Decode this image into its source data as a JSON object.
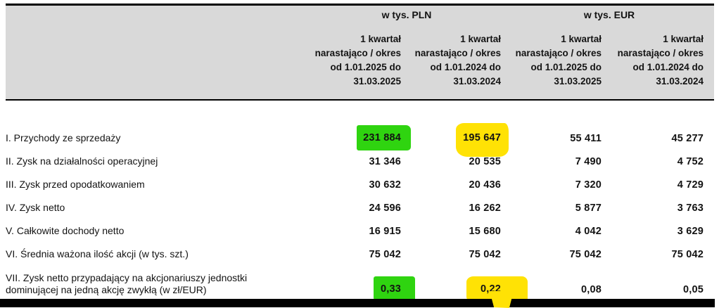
{
  "colors": {
    "green": "#2fd410",
    "yellow": "#ffe205",
    "header_bg": "#d9d9d9"
  },
  "table": {
    "unit_headers": {
      "pln": "w tys. PLN",
      "eur": "w tys. EUR"
    },
    "period_headers": {
      "pln_2025": "1 kwartał\nnarastająco / okres\nod 1.01.2025 do\n31.03.2025",
      "pln_2024": "1 kwartał\nnarastająco / okres\nod 1.01.2024 do\n31.03.2024",
      "eur_2025": "1 kwartał\nnarastająco / okres\nod 1.01.2025 do\n31.03.2025",
      "eur_2024": "1 kwartał\nnarastająco / okres\nod 1.01.2024 do\n31.03.2024"
    },
    "rows": [
      {
        "label": "I. Przychody ze sprzedaży",
        "values": [
          "231 884",
          "195 647",
          "55 411",
          "45 277"
        ],
        "highlights": [
          "green",
          "yellow",
          "",
          ""
        ]
      },
      {
        "label": "II. Zysk na działalności operacyjnej",
        "values": [
          "31 346",
          "20 535",
          "7 490",
          "4 752"
        ],
        "highlights": [
          "",
          "",
          "",
          ""
        ]
      },
      {
        "label": "III. Zysk przed opodatkowaniem",
        "values": [
          "30 632",
          "20 436",
          "7 320",
          "4 729"
        ],
        "highlights": [
          "",
          "",
          "",
          ""
        ]
      },
      {
        "label": "IV. Zysk netto",
        "values": [
          "24 596",
          "16 262",
          "5 877",
          "3 763"
        ],
        "highlights": [
          "",
          "",
          "",
          ""
        ]
      },
      {
        "label": "V. Całkowite dochody netto",
        "values": [
          "16 915",
          "15 680",
          "4 042",
          "3 629"
        ],
        "highlights": [
          "",
          "",
          "",
          ""
        ]
      },
      {
        "label": "VI. Średnia ważona ilość akcji (w tys. szt.)",
        "values": [
          "75 042",
          "75 042",
          "75 042",
          "75 042"
        ],
        "highlights": [
          "",
          "",
          "",
          ""
        ]
      },
      {
        "label": "VII. Zysk netto przypadający na akcjonariuszy jednostki\ndominującej na jedną akcję zwykłą (w zł/EUR)",
        "values": [
          "0,33",
          "0,22",
          "0,08",
          "0,05"
        ],
        "highlights": [
          "green",
          "yellow",
          "",
          ""
        ]
      }
    ]
  }
}
